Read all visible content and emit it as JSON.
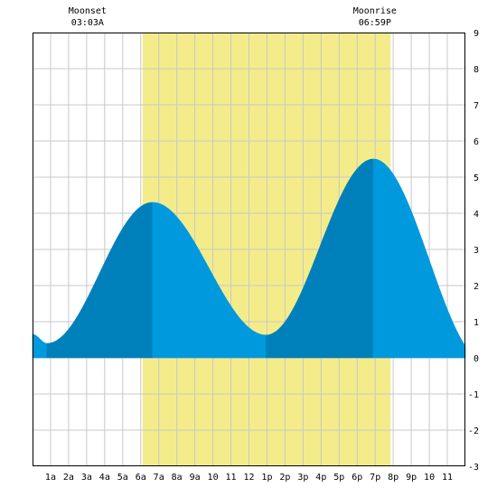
{
  "chart_data": {
    "type": "area",
    "title": "",
    "xlabel": "",
    "ylabel": "",
    "x_range_hours": [
      0,
      24
    ],
    "ylim": [
      -3,
      9
    ],
    "y_ticks": [
      "-3",
      "-2",
      "-1",
      "0",
      "1",
      "2",
      "3",
      "4",
      "5",
      "6",
      "7",
      "8",
      "9"
    ],
    "x_tick_labels": [
      "1a",
      "2a",
      "3a",
      "4a",
      "5a",
      "6a",
      "7a",
      "8a",
      "9a",
      "10",
      "11",
      "12",
      "1p",
      "2p",
      "3p",
      "4p",
      "5p",
      "6p",
      "7p",
      "8p",
      "9p",
      "10",
      "11"
    ],
    "grid": true,
    "daylight": {
      "start_hour": 6.1,
      "end_hour": 19.85,
      "color": "#f4ec8a"
    },
    "colors": {
      "tide": "#0099dd",
      "tide_dark": "#0080bb",
      "grid": "#c8c8c8",
      "background": "#ffffff"
    },
    "tide_extrema": [
      {
        "type": "low",
        "hour": 0.8,
        "height": 0.4
      },
      {
        "type": "high",
        "hour": 6.65,
        "height": 4.3
      },
      {
        "type": "low",
        "hour": 12.95,
        "height": 0.63
      },
      {
        "type": "high",
        "hour": 18.9,
        "height": 5.5
      },
      {
        "type": "low",
        "hour": 25.1,
        "height": -0.1
      }
    ],
    "tide_start_height": 0.65,
    "annotations": [
      {
        "label": "Moonset",
        "time": "03:03A",
        "hour": 3.05
      },
      {
        "label": "Moonrise",
        "time": "06:59P",
        "hour": 18.98
      }
    ]
  }
}
